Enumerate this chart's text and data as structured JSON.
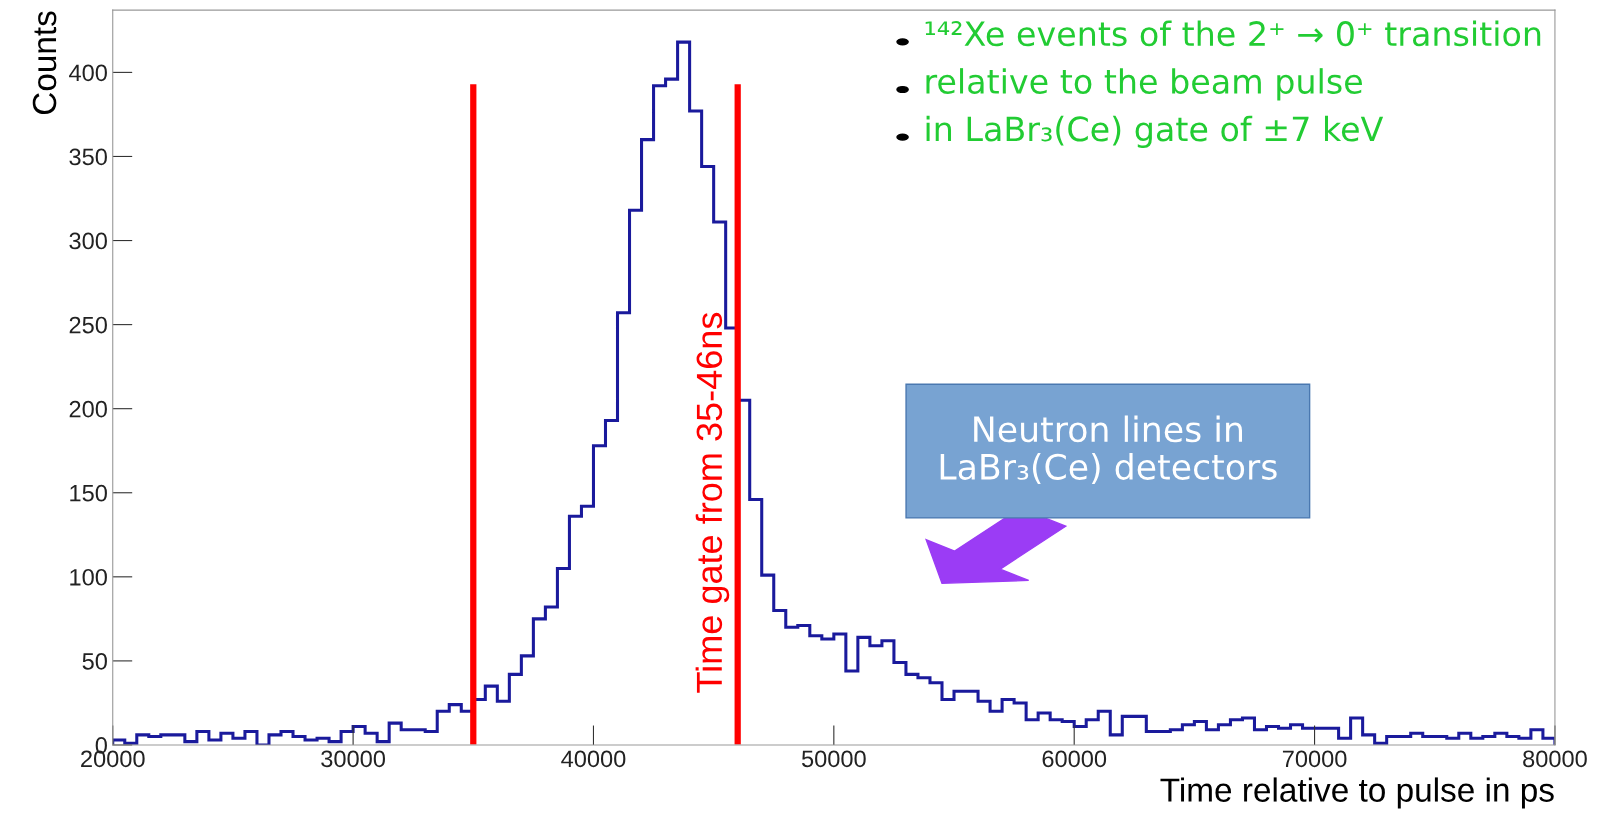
{
  "chart_data": {
    "type": "histogram",
    "xlabel": "Time relative to pulse in ps",
    "ylabel": "Counts",
    "bins": [
      20000,
      20500,
      21000,
      21500,
      22000,
      22500,
      23000,
      23500,
      24000,
      24500,
      25000,
      25500,
      26000,
      26500,
      27000,
      27500,
      28000,
      28500,
      29000,
      29500,
      30000,
      30500,
      31000,
      31500,
      32000,
      32500,
      33000,
      33500,
      34000,
      34500,
      35000,
      35500,
      36000,
      36500,
      37000,
      37500,
      38000,
      38500,
      39000,
      39500,
      40000,
      40500,
      41000,
      41500,
      42000,
      42500,
      43000,
      43500,
      44000,
      44500,
      45000,
      45500,
      46000,
      46500,
      47000,
      47500,
      48000,
      48500,
      49000,
      49500,
      50000,
      50500,
      51000,
      51500,
      52000,
      52500,
      53000,
      53500,
      54000,
      54500,
      55000,
      55500,
      56000,
      56500,
      57000,
      57500,
      58000,
      58500,
      59000,
      59500,
      60000,
      60500,
      61000,
      61500,
      62000,
      62500,
      63000,
      63500,
      64000,
      64500,
      65000,
      65500,
      66000,
      66500,
      67000,
      67500,
      68000,
      68500,
      69000,
      69500,
      70000,
      70500,
      71000,
      71500,
      72000,
      72500,
      73000,
      73500,
      74000,
      74500,
      75000,
      75500,
      76000,
      76500,
      77000,
      77500,
      78000,
      78500,
      79000,
      79500,
      80000
    ],
    "values": [
      3,
      1,
      6,
      5,
      6,
      6,
      2,
      8,
      3,
      7,
      4,
      8,
      0,
      6,
      8,
      5,
      3,
      4,
      2,
      8,
      11,
      7,
      2,
      13,
      9,
      9,
      8,
      20,
      24,
      20,
      27,
      35,
      26,
      42,
      53,
      75,
      82,
      105,
      136,
      142,
      178,
      193,
      257,
      318,
      360,
      392,
      396,
      418,
      377,
      344,
      311,
      248,
      205,
      146,
      101,
      80,
      70,
      71,
      65,
      63,
      66,
      44,
      64,
      59,
      62,
      49,
      42,
      40,
      37,
      27,
      32,
      32,
      26,
      20,
      27,
      25,
      15,
      19,
      15,
      14,
      11,
      15,
      20,
      6,
      17,
      17,
      8,
      8,
      9,
      12,
      14,
      9,
      12,
      15,
      16,
      9,
      11,
      10,
      12,
      10,
      10,
      10,
      4,
      16,
      6,
      1,
      5,
      5,
      7,
      5,
      5,
      4,
      7,
      4,
      5,
      7,
      5,
      4,
      9,
      4
    ],
    "color": "#1a1a9c",
    "xlim": [
      20000,
      80000
    ],
    "xticks": [
      20000,
      30000,
      40000,
      50000,
      60000,
      70000,
      80000
    ],
    "ylim": [
      0,
      437
    ],
    "yticks": [
      0,
      50,
      100,
      150,
      200,
      250,
      300,
      350,
      400
    ],
    "grid": false,
    "legend": false,
    "ref_lines": [
      {
        "axis": "x",
        "value": 35000,
        "color": "#ff0000"
      },
      {
        "axis": "x",
        "value": 46000,
        "color": "#ff0000",
        "label": "Time gate from 35-46ns"
      }
    ],
    "annotations": [
      "¹⁴²Xe events of the 2⁺ → 0⁺ transition",
      "relative to the beam pulse",
      "in LaBr₃(Ce) gate of ±7 keV",
      "Neutron lines in\nLaBr₃(Ce) detectors"
    ]
  }
}
